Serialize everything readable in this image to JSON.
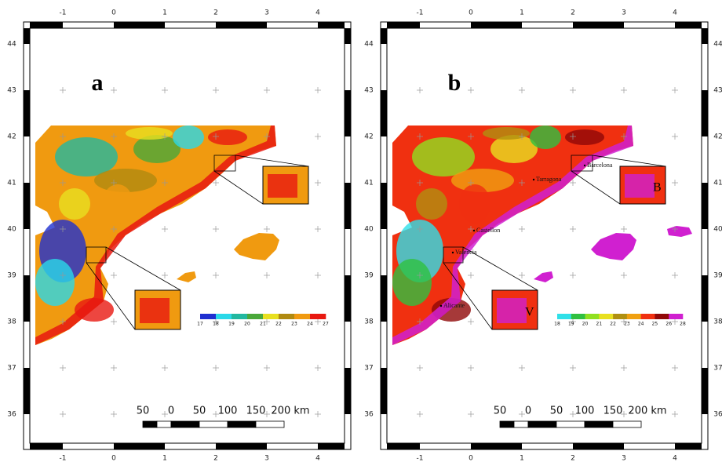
{
  "panels": [
    {
      "label": "a",
      "lon_ticks": [
        -1,
        0,
        1,
        2,
        3,
        4
      ],
      "lat_ticks": [
        36,
        37,
        38,
        39,
        40,
        41,
        42,
        43,
        44
      ],
      "colorbar": {
        "labels": [
          "17",
          "18",
          "19",
          "20",
          "21",
          "22",
          "23",
          "24",
          "27"
        ],
        "colors": [
          "#1f2fd0",
          "#2ad8e8",
          "#22b8a0",
          "#4aa83a",
          "#e8e020",
          "#b08a10",
          "#f09a10",
          "#e81810"
        ]
      },
      "scale_bar": [
        "50",
        "0",
        "50",
        "100",
        "150",
        "200 km"
      ],
      "places": [],
      "insets": []
    },
    {
      "label": "b",
      "lon_ticks": [
        -1,
        0,
        1,
        2,
        3,
        4
      ],
      "lat_ticks": [
        36,
        37,
        38,
        39,
        40,
        41,
        42,
        43,
        44
      ],
      "colorbar": {
        "labels": [
          "18",
          "19",
          "20",
          "21",
          "22",
          "23",
          "24",
          "25",
          "26",
          "28"
        ],
        "colors": [
          "#30e0e8",
          "#30c040",
          "#90e020",
          "#e8e020",
          "#b09010",
          "#f0a010",
          "#f03010",
          "#900808",
          "#d020d0"
        ]
      },
      "scale_bar": [
        "50",
        "0",
        "50",
        "100",
        "150",
        "200 km"
      ],
      "places": [
        "Barcelona",
        "Tarragona",
        "Castellon",
        "Valencia",
        "Alicante"
      ],
      "insets": [
        "B",
        "V"
      ]
    }
  ]
}
